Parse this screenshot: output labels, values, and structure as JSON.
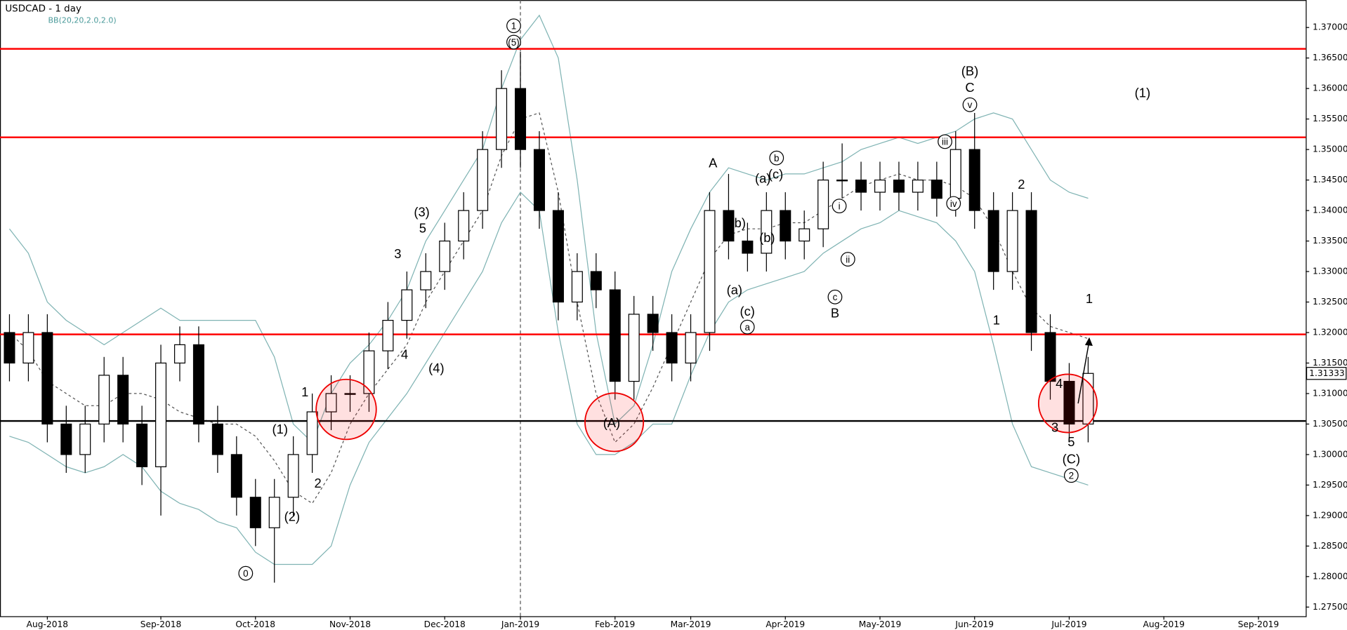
{
  "chart_data": {
    "type": "candlestick",
    "title": "USDCAD - 1 day",
    "indicator": "BB(20,20,2.0,2.0)",
    "categories": [
      null,
      null,
      "Aug-2018",
      null,
      null,
      null,
      null,
      null,
      "Sep-2018",
      null,
      null,
      null,
      null,
      "Oct-2018",
      null,
      null,
      null,
      null,
      "Nov-2018",
      null,
      null,
      null,
      null,
      "Dec-2018",
      null,
      null,
      null,
      "Jan-2019",
      null,
      null,
      null,
      null,
      "Feb-2019",
      null,
      null,
      null,
      "Mar-2019",
      null,
      null,
      null,
      null,
      "Apr-2019",
      null,
      null,
      null,
      null,
      "May-2019",
      null,
      null,
      null,
      null,
      "Jun-2019",
      null,
      null,
      null,
      null,
      "Jul-2019",
      null,
      null,
      null,
      null,
      "Aug-2019",
      null,
      null,
      null,
      null,
      "Sep-2019",
      null,
      null
    ],
    "open": [
      1.32,
      1.315,
      1.32,
      1.305,
      1.3,
      1.305,
      1.313,
      1.305,
      1.298,
      1.315,
      1.318,
      1.305,
      1.3,
      1.293,
      1.288,
      1.293,
      1.3,
      1.307,
      1.31,
      1.31,
      1.317,
      1.322,
      1.327,
      1.33,
      1.335,
      1.34,
      1.35,
      1.36,
      1.35,
      1.34,
      1.325,
      1.33,
      1.327,
      1.312,
      1.323,
      1.32,
      1.315,
      1.32,
      1.34,
      1.335,
      1.333,
      1.34,
      1.335,
      1.337,
      1.345,
      1.345,
      1.343,
      1.345,
      1.343,
      1.345,
      1.342,
      1.35,
      1.34,
      1.33,
      1.34,
      1.32,
      1.312,
      1.305,
      null,
      null,
      null,
      null,
      null,
      null,
      null,
      null,
      null,
      null,
      null
    ],
    "high": [
      1.323,
      1.323,
      1.323,
      1.308,
      1.308,
      1.316,
      1.316,
      1.308,
      1.318,
      1.321,
      1.321,
      1.308,
      1.303,
      1.296,
      1.296,
      1.303,
      1.31,
      1.313,
      1.313,
      1.32,
      1.325,
      1.33,
      1.333,
      1.338,
      1.343,
      1.353,
      1.363,
      1.366,
      1.353,
      1.343,
      1.333,
      1.333,
      1.33,
      1.326,
      1.326,
      1.323,
      1.323,
      1.343,
      1.346,
      1.338,
      1.343,
      1.343,
      1.34,
      1.348,
      1.351,
      1.348,
      1.348,
      1.348,
      1.348,
      1.348,
      1.353,
      1.356,
      1.343,
      1.343,
      1.343,
      1.323,
      1.315,
      1.316,
      null,
      null,
      null,
      null,
      null,
      null,
      null,
      null,
      null,
      null,
      null
    ],
    "low": [
      1.312,
      1.312,
      1.302,
      1.297,
      1.297,
      1.302,
      1.302,
      1.295,
      1.29,
      1.312,
      1.302,
      1.297,
      1.29,
      1.285,
      1.279,
      1.29,
      1.297,
      1.304,
      1.307,
      1.307,
      1.314,
      1.319,
      1.324,
      1.327,
      1.332,
      1.337,
      1.347,
      1.347,
      1.337,
      1.322,
      1.322,
      1.324,
      1.309,
      1.309,
      1.317,
      1.312,
      1.312,
      1.317,
      1.332,
      1.33,
      1.33,
      1.332,
      1.332,
      1.334,
      1.342,
      1.34,
      1.34,
      1.34,
      1.34,
      1.339,
      1.339,
      1.337,
      1.327,
      1.327,
      1.317,
      1.309,
      1.302,
      1.302,
      null,
      null,
      null,
      null,
      null,
      null,
      null,
      null,
      null,
      null,
      null
    ],
    "close": [
      1.315,
      1.32,
      1.305,
      1.3,
      1.305,
      1.313,
      1.305,
      1.298,
      1.315,
      1.318,
      1.305,
      1.3,
      1.293,
      1.288,
      1.293,
      1.3,
      1.307,
      1.31,
      1.31,
      1.317,
      1.322,
      1.327,
      1.33,
      1.335,
      1.34,
      1.35,
      1.36,
      1.35,
      1.34,
      1.325,
      1.33,
      1.327,
      1.312,
      1.323,
      1.32,
      1.315,
      1.32,
      1.34,
      1.335,
      1.333,
      1.34,
      1.335,
      1.337,
      1.345,
      1.345,
      1.343,
      1.345,
      1.343,
      1.345,
      1.342,
      1.35,
      1.34,
      1.33,
      1.34,
      1.32,
      1.312,
      1.305,
      1.3133,
      null,
      null,
      null,
      null,
      null,
      null,
      null,
      null,
      null,
      null,
      null
    ],
    "series": [
      {
        "name": "BB upper",
        "color": "#7fb3b3",
        "values": [
          1.337,
          1.333,
          1.325,
          1.322,
          1.32,
          1.318,
          1.32,
          1.322,
          1.324,
          1.322,
          1.322,
          1.322,
          1.322,
          1.322,
          1.316,
          1.305,
          1.302,
          1.31,
          1.315,
          1.318,
          1.322,
          1.327,
          1.335,
          1.34,
          1.345,
          1.35,
          1.36,
          1.368,
          1.372,
          1.365,
          1.345,
          1.32,
          1.305,
          1.308,
          1.318,
          1.33,
          1.337,
          1.343,
          1.347,
          1.346,
          1.345,
          1.346,
          1.346,
          1.347,
          1.348,
          1.35,
          1.351,
          1.352,
          1.351,
          1.352,
          1.353,
          1.355,
          1.356,
          1.355,
          1.35,
          1.345,
          1.343,
          1.342,
          null,
          null,
          null,
          null,
          null,
          null,
          null,
          null,
          null,
          null,
          null
        ]
      },
      {
        "name": "BB middle",
        "color": "#555555",
        "dash": true,
        "values": [
          1.32,
          1.317,
          1.312,
          1.31,
          1.308,
          1.308,
          1.31,
          1.31,
          1.309,
          1.307,
          1.306,
          1.305,
          1.305,
          1.303,
          1.299,
          1.294,
          1.292,
          1.297,
          1.305,
          1.31,
          1.314,
          1.318,
          1.325,
          1.33,
          1.335,
          1.34,
          1.349,
          1.355,
          1.356,
          1.343,
          1.325,
          1.31,
          1.302,
          1.305,
          1.311,
          1.318,
          1.325,
          1.332,
          1.336,
          1.337,
          1.337,
          1.338,
          1.338,
          1.34,
          1.342,
          1.344,
          1.345,
          1.346,
          1.345,
          1.345,
          1.344,
          1.342,
          1.337,
          1.33,
          1.324,
          1.321,
          1.32,
          1.319,
          null,
          null,
          null,
          null,
          null,
          null,
          null,
          null,
          null,
          null,
          null
        ]
      },
      {
        "name": "BB lower",
        "color": "#7fb3b3",
        "values": [
          1.303,
          1.302,
          1.3,
          1.298,
          1.297,
          1.298,
          1.3,
          1.298,
          1.294,
          1.292,
          1.291,
          1.289,
          1.288,
          1.284,
          1.282,
          1.282,
          1.282,
          1.285,
          1.295,
          1.302,
          1.306,
          1.31,
          1.315,
          1.32,
          1.325,
          1.33,
          1.338,
          1.343,
          1.34,
          1.32,
          1.305,
          1.3,
          1.3,
          1.302,
          1.305,
          1.305,
          1.313,
          1.32,
          1.325,
          1.327,
          1.328,
          1.329,
          1.33,
          1.333,
          1.335,
          1.337,
          1.338,
          1.34,
          1.339,
          1.338,
          1.335,
          1.33,
          1.318,
          1.305,
          1.298,
          1.297,
          1.296,
          1.295,
          null,
          null,
          null,
          null,
          null,
          null,
          null,
          null,
          null,
          null,
          null
        ]
      }
    ],
    "levels": [
      {
        "value": 1.3665,
        "color": "#ff0000"
      },
      {
        "value": 1.352,
        "color": "#ff0000"
      },
      {
        "value": 1.3197,
        "color": "#ff0000"
      },
      {
        "value": 1.3055,
        "color": "#000000"
      }
    ],
    "last_price_label": "1.31333",
    "ylim": [
      1.2735,
      1.3745
    ],
    "yticks": [
      {
        "value": 1.37,
        "label": "1.37000"
      },
      {
        "value": 1.365,
        "label": "1.36500"
      },
      {
        "value": 1.36,
        "label": "1.36000"
      },
      {
        "value": 1.355,
        "label": "1.35500"
      },
      {
        "value": 1.35,
        "label": "1.35000"
      },
      {
        "value": 1.345,
        "label": "1.34500"
      },
      {
        "value": 1.34,
        "label": "1.34000"
      },
      {
        "value": 1.335,
        "label": "1.33500"
      },
      {
        "value": 1.33,
        "label": "1.33000"
      },
      {
        "value": 1.325,
        "label": "1.32500"
      },
      {
        "value": 1.32,
        "label": "1.32000"
      },
      {
        "value": 1.315,
        "label": "1.31500"
      },
      {
        "value": 1.31,
        "label": "1.31000"
      },
      {
        "value": 1.305,
        "label": "1.30500"
      },
      {
        "value": 1.3,
        "label": "1.30000"
      },
      {
        "value": 1.295,
        "label": "1.29500"
      },
      {
        "value": 1.29,
        "label": "1.29000"
      },
      {
        "value": 1.285,
        "label": "1.28500"
      },
      {
        "value": 1.28,
        "label": "1.28000"
      },
      {
        "value": 1.275,
        "label": "1.27500"
      }
    ],
    "annotations": [
      "0",
      "(1)",
      "1",
      "(2)",
      "2",
      "3",
      "4",
      "(3)",
      "5",
      "(4)",
      "1",
      "(5)",
      "(A)",
      "A",
      "(a)",
      "(b)",
      "(a)",
      "(c)",
      "a",
      "(b)",
      "b",
      "(c)",
      "i",
      "ii",
      "c",
      "B",
      "iii",
      "iv",
      "v",
      "C",
      "(B)",
      "(1)",
      "1",
      "2",
      "1",
      "4",
      "3",
      "5",
      "(C)",
      "2"
    ]
  }
}
